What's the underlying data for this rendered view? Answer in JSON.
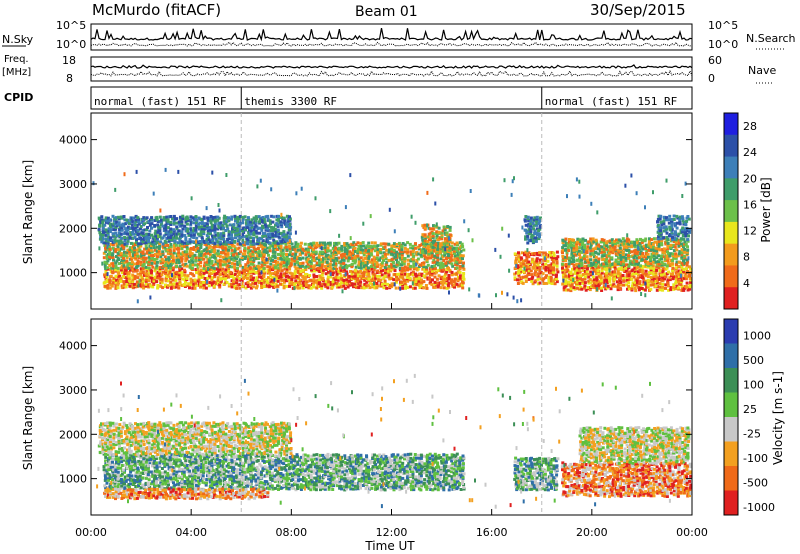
{
  "header": {
    "station": "McMurdo (fitACF)",
    "beam": "Beam 01",
    "date": "30/Sep/2015"
  },
  "summary_panels": {
    "nsky_label": "N.Sky",
    "nsky_ticks": [
      "10^5",
      "10^0"
    ],
    "nsearch_label": "N.Search",
    "nsearch_ticks": [
      "10^5",
      "10^0"
    ],
    "freq_label": "Freq.",
    "freq_unit": "[MHz]",
    "freq_ticks": [
      "18",
      "8"
    ],
    "nave_label": "Nave",
    "nave_ticks": [
      "60",
      "0"
    ],
    "cpid_label": "CPID",
    "cpid_segments": [
      {
        "label": "normal (fast) 151 RF",
        "start_hour": 0,
        "end_hour": 6
      },
      {
        "label": "themis 3300 RF",
        "start_hour": 6,
        "end_hour": 18
      },
      {
        "label": "normal (fast) 151 RF",
        "start_hour": 18,
        "end_hour": 24
      }
    ]
  },
  "chart_data": [
    {
      "type": "heatmap",
      "parameter": "Power",
      "xlabel": "Time UT",
      "ylabel": "Slant Range [km]",
      "xlim": [
        0,
        24
      ],
      "ylim": [
        180,
        4600
      ],
      "y_ticks": [
        "1000",
        "2000",
        "3000",
        "4000"
      ],
      "colorbar": {
        "label": "Power [dB]",
        "ticks": [
          "4",
          "8",
          "12",
          "16",
          "20",
          "24",
          "28"
        ],
        "range": [
          0,
          30
        ],
        "colors": [
          "#1f1fe0",
          "#2c50a8",
          "#3d7fb8",
          "#3f9d6a",
          "#6cc04a",
          "#e8e61c",
          "#f39b1c",
          "#f06b1a",
          "#e02020"
        ]
      },
      "bands": [
        {
          "t0": 0.5,
          "t1": 14.8,
          "r0": 700,
          "r1": 1150,
          "level": "high"
        },
        {
          "t0": 0.5,
          "t1": 14.8,
          "r0": 1150,
          "r1": 1700,
          "level": "medium"
        },
        {
          "t0": 0.3,
          "t1": 8.0,
          "r0": 1700,
          "r1": 2300,
          "level": "low"
        },
        {
          "t0": 13.2,
          "t1": 14.4,
          "r0": 1500,
          "r1": 2100,
          "level": "medium"
        },
        {
          "t0": 16.9,
          "t1": 18.6,
          "r0": 800,
          "r1": 1500,
          "level": "high"
        },
        {
          "t0": 17.3,
          "t1": 17.9,
          "r0": 1700,
          "r1": 2300,
          "level": "low"
        },
        {
          "t0": 18.8,
          "t1": 23.9,
          "r0": 650,
          "r1": 1200,
          "level": "high"
        },
        {
          "t0": 18.8,
          "t1": 23.8,
          "r0": 1200,
          "r1": 1800,
          "level": "medium"
        },
        {
          "t0": 22.6,
          "t1": 23.9,
          "r0": 1800,
          "r1": 2300,
          "level": "low"
        }
      ]
    },
    {
      "type": "heatmap",
      "parameter": "Velocity",
      "xlabel": "Time UT",
      "ylabel": "Slant Range [km]",
      "xlim": [
        0,
        24
      ],
      "ylim": [
        180,
        4600
      ],
      "y_ticks": [
        "1000",
        "2000",
        "3000",
        "4000"
      ],
      "colorbar": {
        "label": "Velocity [m s-1]",
        "ticks": [
          "1000",
          "500",
          "100",
          "25",
          "-25",
          "-100",
          "-500",
          "-1000"
        ],
        "range": [
          -1000,
          1000
        ],
        "colors": [
          "#2b3cb0",
          "#2f6fa8",
          "#3c8f56",
          "#5fc040",
          "#c8c8c8",
          "#f3a020",
          "#f06a18",
          "#e02020"
        ]
      },
      "bands": [
        {
          "t0": 0.5,
          "t1": 14.8,
          "r0": 800,
          "r1": 1600,
          "level": "positive"
        },
        {
          "t0": 0.5,
          "t1": 7.0,
          "r0": 600,
          "r1": 800,
          "level": "negative"
        },
        {
          "t0": 0.3,
          "t1": 8.0,
          "r0": 1600,
          "r1": 2300,
          "level": "near-zero"
        },
        {
          "t0": 16.9,
          "t1": 18.6,
          "r0": 800,
          "r1": 1500,
          "level": "positive"
        },
        {
          "t0": 18.8,
          "t1": 23.9,
          "r0": 650,
          "r1": 1400,
          "level": "negative"
        },
        {
          "t0": 19.5,
          "t1": 23.8,
          "r0": 1400,
          "r1": 2200,
          "level": "near-zero"
        }
      ]
    }
  ],
  "x_axis": {
    "ticks": [
      "00:00",
      "04:00",
      "08:00",
      "12:00",
      "16:00",
      "20:00",
      "00:00"
    ],
    "label": "Time UT"
  }
}
